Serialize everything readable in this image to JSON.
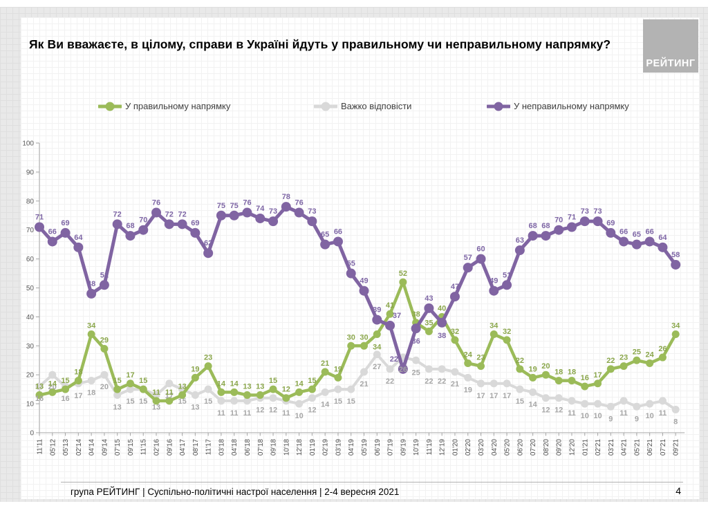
{
  "slide": {
    "title": "Як Ви вважаєте, в цілому, справи в Україні йдуть у правильному чи неправильному напрямку?",
    "logo_text": "РЕЙТИНГ",
    "footer": {
      "left": "група РЕЙТИНГ | Суспільно-політичні настрої населення  | 2-4 вересня 2021",
      "page": "4"
    }
  },
  "colors": {
    "green": "#9bbb59",
    "green_label": "#8aa64b",
    "gray": "#d9d9d9",
    "gray_label": "#a6a6a6",
    "purple": "#8064a2",
    "purple_label": "#7e66a5",
    "axis": "#a6a6a6",
    "axis_text": "#595959"
  },
  "chart_data": {
    "type": "line",
    "title": "",
    "xlabel": "",
    "ylabel": "",
    "ylim": [
      0,
      100
    ],
    "yticks": [
      0,
      10,
      20,
      30,
      40,
      50,
      60,
      70,
      80,
      90,
      100
    ],
    "grid": false,
    "legend_position": "top",
    "x": [
      "11'11",
      "05'12",
      "05'13",
      "02'14",
      "04'14",
      "09'14",
      "07'15",
      "09'15",
      "11'15",
      "02'16",
      "09'16",
      "04'17",
      "08'17",
      "11'17",
      "03'18",
      "04'18",
      "06'18",
      "07'18",
      "09'18",
      "10'18",
      "12'18",
      "01'19",
      "02'19",
      "03'19",
      "04'19",
      "05'19",
      "06'19",
      "07'19",
      "09'19",
      "10'19",
      "11'19",
      "12'19",
      "01'20",
      "02'20",
      "03'20",
      "04'20",
      "05'20",
      "06'20",
      "07'20",
      "08'20",
      "09'20",
      "12'20",
      "01'21",
      "02'21",
      "03'21",
      "04'21",
      "05'21",
      "06'21",
      "07'21",
      "09'21"
    ],
    "series": [
      {
        "name": "У правильному напрямку",
        "color": "#9bbb59",
        "label_color": "#8aa64b",
        "values": [
          13,
          14,
          15,
          18,
          34,
          29,
          15,
          17,
          15,
          11,
          11,
          13,
          19,
          23,
          14,
          14,
          13,
          13,
          15,
          12,
          14,
          15,
          21,
          19,
          30,
          30,
          34,
          41,
          52,
          38,
          35,
          40,
          32,
          24,
          23,
          34,
          32,
          22,
          19,
          20,
          18,
          18,
          16,
          17,
          22,
          23,
          25,
          24,
          26,
          34
        ]
      },
      {
        "name": "Важко відповісти",
        "color": "#d9d9d9",
        "label_color": "#a6a6a6",
        "values": [
          16,
          20,
          16,
          17,
          18,
          20,
          13,
          15,
          15,
          13,
          17,
          15,
          13,
          15,
          11,
          11,
          11,
          12,
          12,
          11,
          10,
          12,
          14,
          15,
          15,
          21,
          27,
          22,
          26,
          25,
          22,
          22,
          21,
          19,
          17,
          17,
          17,
          15,
          14,
          12,
          12,
          11,
          10,
          10,
          9,
          11,
          9,
          10,
          11,
          8
        ]
      },
      {
        "name": "У неправильному напрямку",
        "color": "#8064a2",
        "label_color": "#7e66a5",
        "values": [
          71,
          66,
          69,
          64,
          48,
          51,
          72,
          68,
          70,
          76,
          72,
          72,
          69,
          62,
          75,
          75,
          76,
          74,
          73,
          78,
          76,
          73,
          65,
          66,
          55,
          49,
          39,
          37,
          22,
          36,
          43,
          38,
          47,
          57,
          60,
          49,
          51,
          63,
          68,
          68,
          70,
          71,
          73,
          73,
          69,
          66,
          65,
          66,
          64,
          58
        ]
      }
    ]
  }
}
